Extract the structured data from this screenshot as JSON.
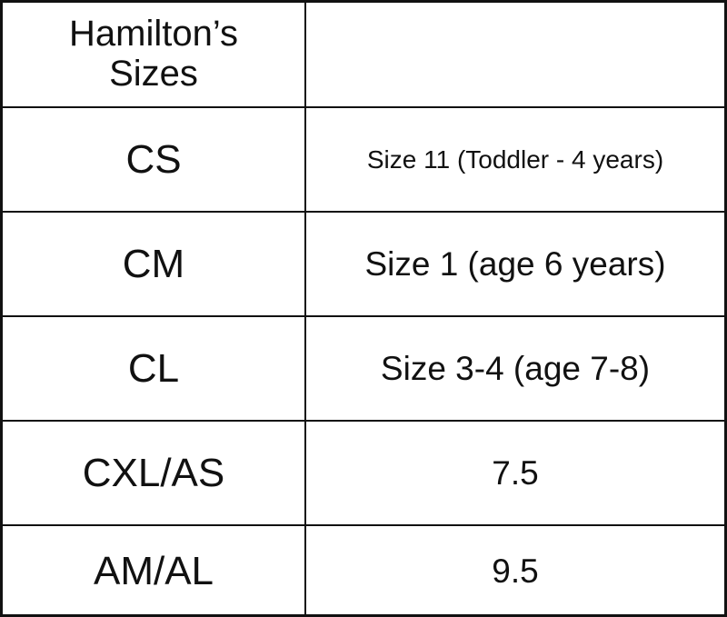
{
  "table": {
    "header": [
      "Hamilton’s Sizes"
    ],
    "rows": [
      [
        "CS",
        "Size 11 (Toddler - 4 years)"
      ],
      [
        "CM",
        "Size 1 (age 6 years)"
      ],
      [
        "CL",
        "Size 3-4 (age 7-8)"
      ],
      [
        "CXL/AS",
        7.5
      ],
      [
        "AM/AL",
        9.5
      ]
    ]
  }
}
